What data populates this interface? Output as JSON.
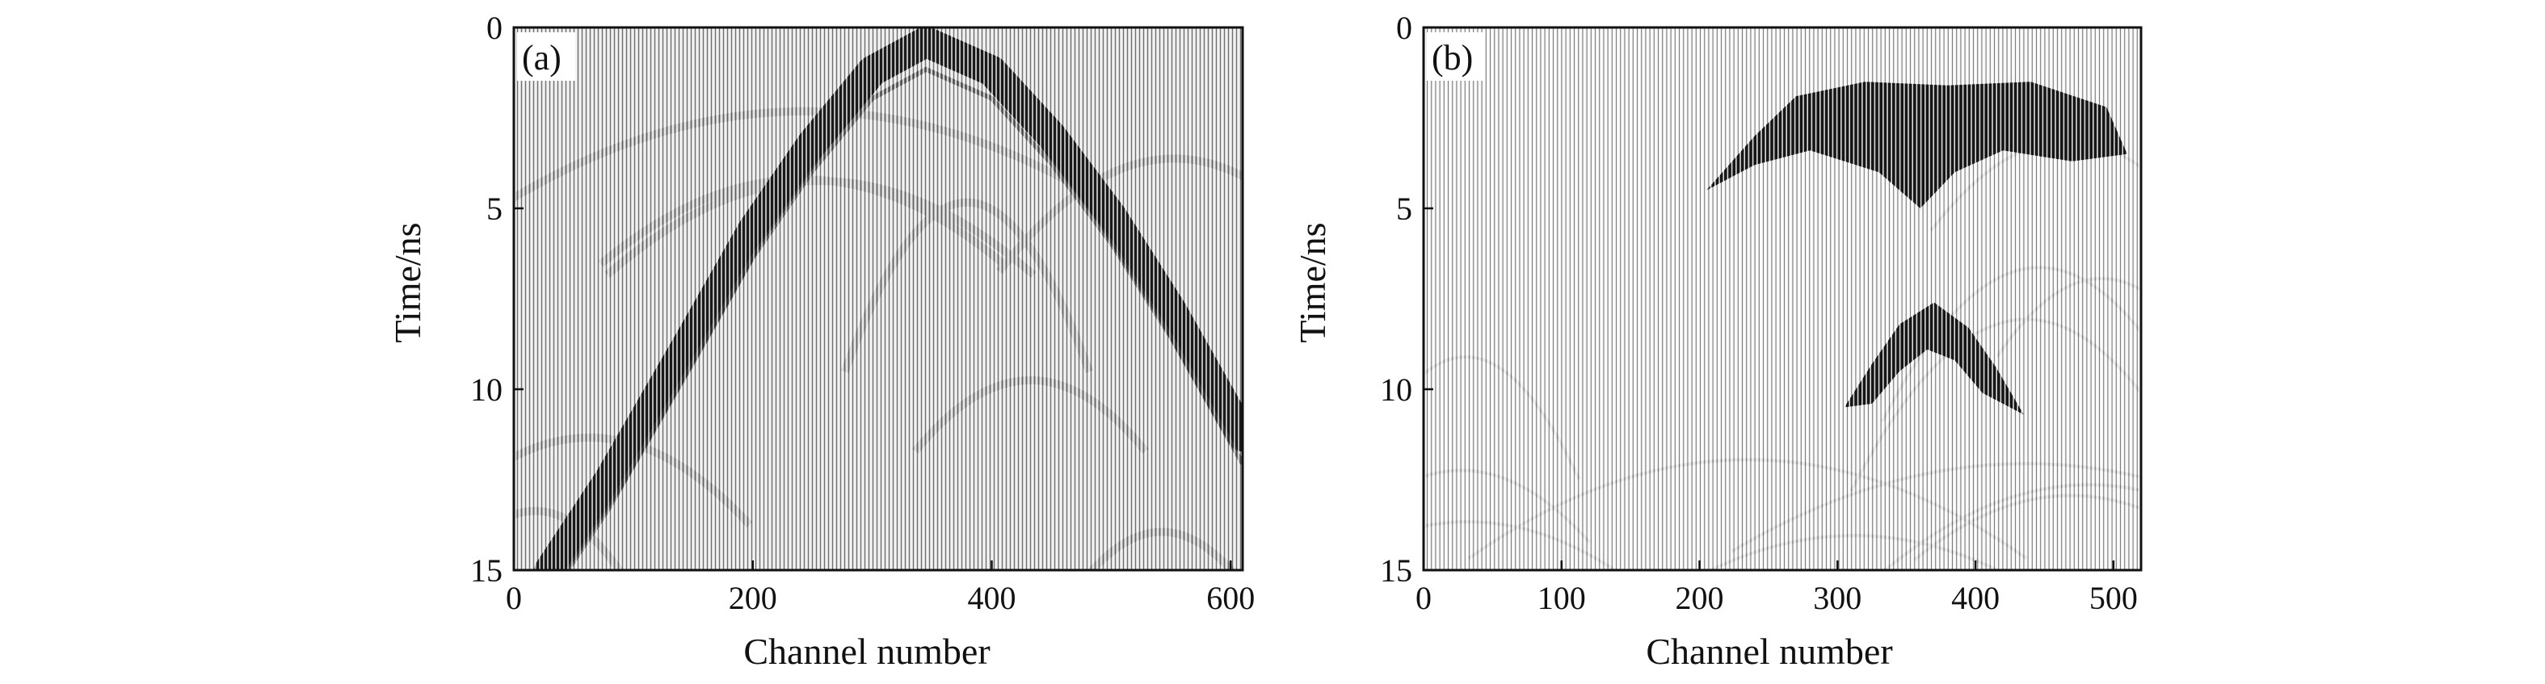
{
  "chart_data": [
    {
      "type": "heatmap",
      "panel_label": "(a)",
      "xlabel": "Channel number",
      "ylabel": "Time/ns",
      "xlim": [
        0,
        610
      ],
      "ylim": [
        15,
        0
      ],
      "x_ticks": [
        0,
        200,
        400,
        600
      ],
      "x_tick_labels": [
        "0",
        "200",
        "400",
        "600"
      ],
      "y_ticks": [
        0,
        5,
        10,
        15
      ],
      "y_tick_labels": [
        "0",
        "5",
        "10",
        "15"
      ],
      "colormap": "grayscale",
      "hyperbola_reflection": {
        "apex_channel": 345,
        "apex_time_ns": 0.4,
        "points": [
          {
            "x": 30,
            "y": 15
          },
          {
            "x": 80,
            "y": 12.5
          },
          {
            "x": 150,
            "y": 8.5
          },
          {
            "x": 200,
            "y": 5.6
          },
          {
            "x": 250,
            "y": 3.2
          },
          {
            "x": 300,
            "y": 1.2
          },
          {
            "x": 345,
            "y": 0.4
          },
          {
            "x": 400,
            "y": 1.2
          },
          {
            "x": 450,
            "y": 3.0
          },
          {
            "x": 500,
            "y": 5.2
          },
          {
            "x": 550,
            "y": 7.8
          },
          {
            "x": 610,
            "y": 11.3
          }
        ]
      }
    },
    {
      "type": "heatmap",
      "panel_label": "(b)",
      "xlabel": "Channel number",
      "ylabel": "Time/ns",
      "xlim": [
        0,
        520
      ],
      "ylim": [
        15,
        0
      ],
      "x_ticks": [
        0,
        100,
        200,
        300,
        400,
        500
      ],
      "x_tick_labels": [
        "0",
        "100",
        "200",
        "300",
        "400",
        "500"
      ],
      "y_ticks": [
        0,
        5,
        10,
        15
      ],
      "y_tick_labels": [
        "0",
        "5",
        "10",
        "15"
      ],
      "colormap": "grayscale",
      "upper_blob": {
        "points": [
          {
            "x": 205,
            "y": 4.5
          },
          {
            "x": 240,
            "y": 3.0
          },
          {
            "x": 270,
            "y": 1.9
          },
          {
            "x": 320,
            "y": 1.5
          },
          {
            "x": 380,
            "y": 1.6
          },
          {
            "x": 440,
            "y": 1.5
          },
          {
            "x": 495,
            "y": 2.2
          },
          {
            "x": 510,
            "y": 3.5
          },
          {
            "x": 470,
            "y": 3.7
          },
          {
            "x": 420,
            "y": 3.4
          },
          {
            "x": 385,
            "y": 4.0
          },
          {
            "x": 360,
            "y": 5.0
          },
          {
            "x": 330,
            "y": 4.0
          },
          {
            "x": 280,
            "y": 3.4
          },
          {
            "x": 240,
            "y": 3.8
          }
        ]
      },
      "lower_hyperbola": {
        "points": [
          {
            "x": 305,
            "y": 10.5
          },
          {
            "x": 325,
            "y": 9.3
          },
          {
            "x": 345,
            "y": 8.2
          },
          {
            "x": 370,
            "y": 7.6
          },
          {
            "x": 395,
            "y": 8.3
          },
          {
            "x": 415,
            "y": 9.4
          },
          {
            "x": 435,
            "y": 10.7
          },
          {
            "x": 405,
            "y": 10.1
          },
          {
            "x": 385,
            "y": 9.2
          },
          {
            "x": 365,
            "y": 8.9
          },
          {
            "x": 345,
            "y": 9.5
          },
          {
            "x": 325,
            "y": 10.4
          }
        ]
      }
    }
  ]
}
